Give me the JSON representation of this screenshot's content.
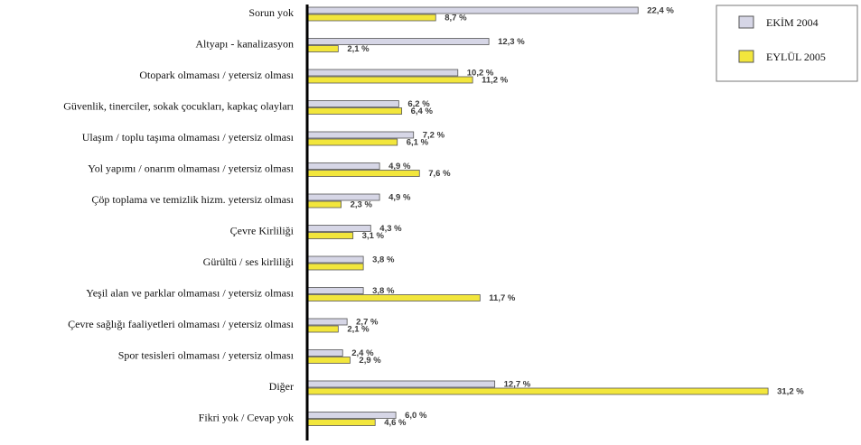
{
  "chart_data": {
    "type": "bar",
    "orientation": "horizontal",
    "categories": [
      "Sorun yok",
      "Altyapı - kanalizasyon",
      "Otopark olmaması / yetersiz olması",
      "Güvenlik, tinerciler, sokak çocukları, kapkaç olayları",
      "Ulaşım / toplu taşıma olmaması / yetersiz olması",
      "Yol yapımı / onarım olmaması / yetersiz olması",
      "Çöp toplama ve temizlik hizm. yetersiz olması",
      "Çevre Kirliliği",
      "Gürültü / ses kirliliği",
      "Yeşil alan ve parklar olmaması / yetersiz olması",
      "Çevre sağlığı faaliyetleri olmaması / yetersiz olması",
      "Spor tesisleri olmaması / yetersiz olması",
      "Diğer",
      "Fikri yok / Cevap yok"
    ],
    "series": [
      {
        "name": "EKİM 2004",
        "color": "#d6d6e6",
        "values": [
          22.4,
          12.3,
          10.2,
          6.2,
          7.2,
          4.9,
          4.9,
          4.3,
          3.8,
          3.8,
          2.7,
          2.4,
          12.7,
          6.0
        ],
        "labels": [
          "22,4 %",
          "12,3 %",
          "10,2 %",
          "6,2 %",
          "7,2 %",
          "4,9 %",
          "4,9 %",
          "4,3 %",
          "3,8 %",
          "3,8 %",
          "2,7 %",
          "2,4 %",
          "12,7 %",
          "6,0 %"
        ]
      },
      {
        "name": "EYLÜL 2005",
        "color": "#f2e63c",
        "values": [
          8.7,
          2.1,
          11.2,
          6.4,
          6.1,
          7.6,
          2.3,
          3.1,
          3.8,
          11.7,
          2.1,
          2.9,
          31.2,
          4.6
        ],
        "labels": [
          "8,7 %",
          "2,1 %",
          "11,2 %",
          "6,4 %",
          "6,1 %",
          "7,6 %",
          "2,3 %",
          "3,1 %",
          "",
          "11,7 %",
          "2,1 %",
          "2,9 %",
          "31,2 %",
          "4,6 %"
        ]
      }
    ],
    "xlim": [
      0,
      33
    ],
    "legend_position": "top-right",
    "grid": false
  }
}
